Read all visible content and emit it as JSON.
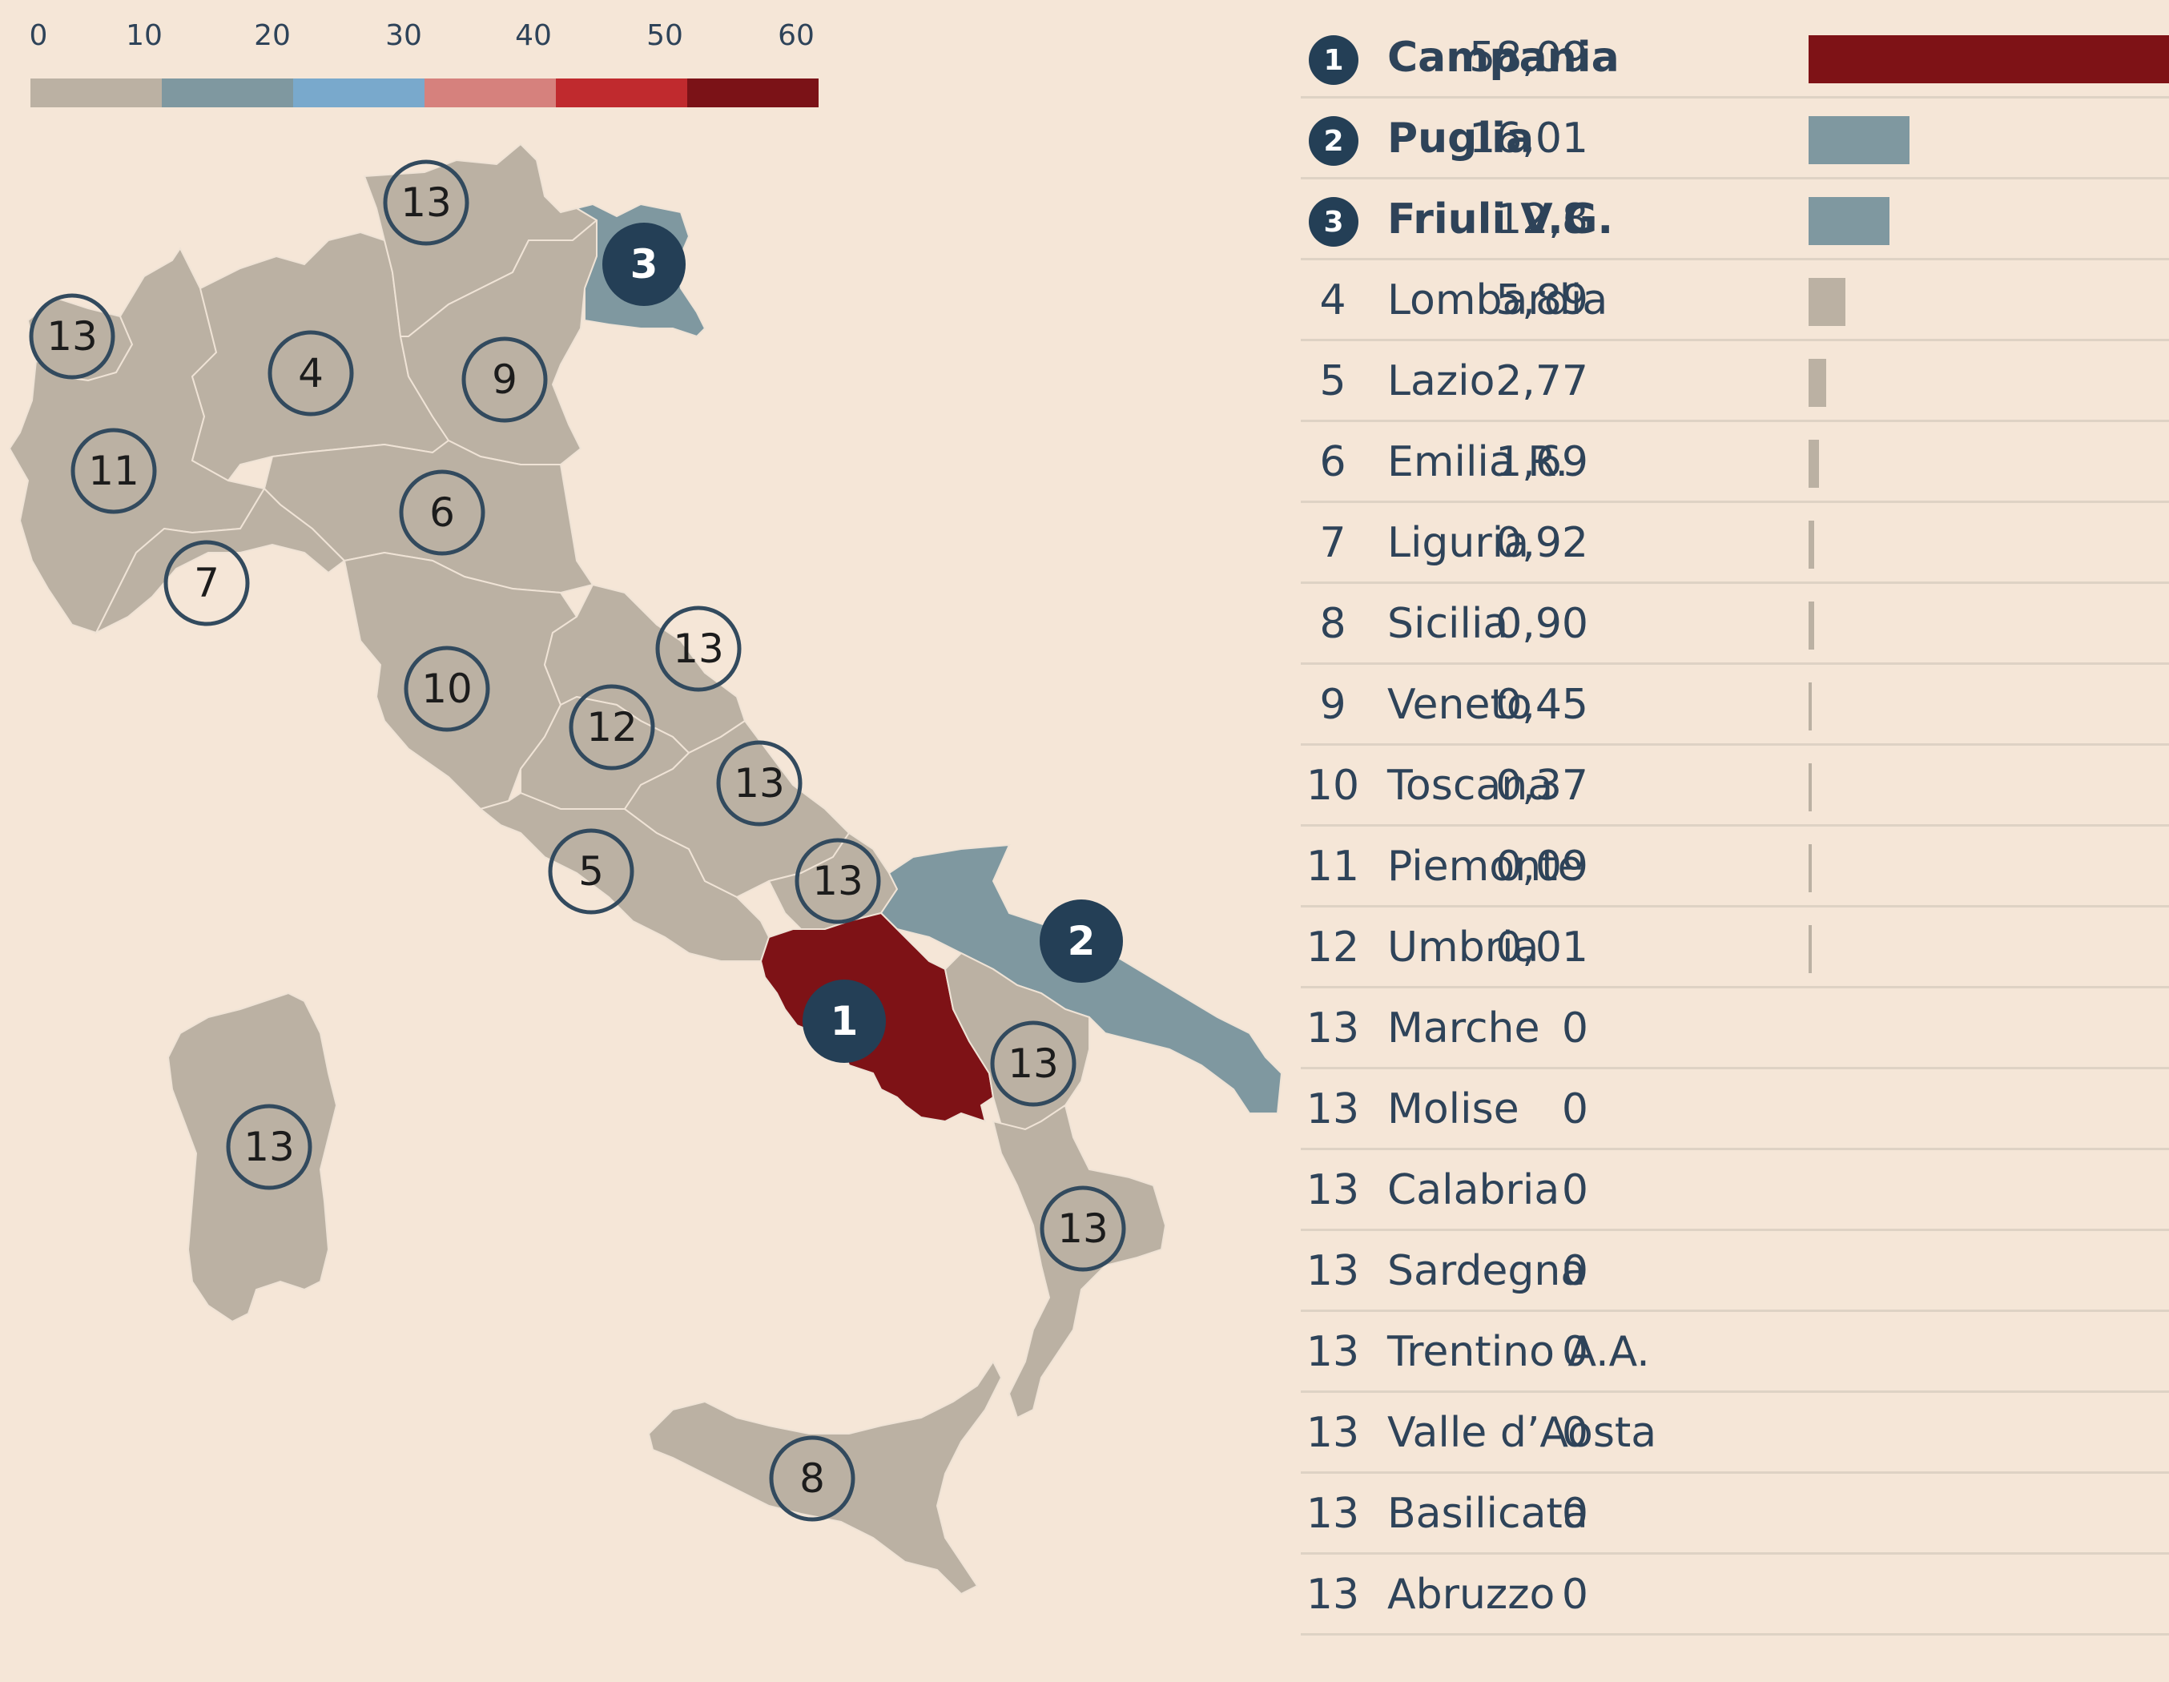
{
  "legend": {
    "ticks": [
      "0",
      "10",
      "20",
      "30",
      "40",
      "50",
      "60"
    ],
    "colors": [
      "#bbb1a3",
      "#7f98a0",
      "#79a9cc",
      "#d6817d",
      "#c02a2e",
      "#7b1217"
    ]
  },
  "colors": {
    "background": "#f5e6d7",
    "land": "#bbb1a3",
    "campania": "#7e1216",
    "puglia_friuli": "#7f98a0",
    "badge_dark": "#243f56",
    "text": "#2e4359"
  },
  "map_labels": [
    {
      "id": "trentino",
      "label": "13",
      "filled": false
    },
    {
      "id": "friuli",
      "label": "3",
      "filled": true
    },
    {
      "id": "valle",
      "label": "13",
      "filled": false
    },
    {
      "id": "lombardia",
      "label": "4",
      "filled": false
    },
    {
      "id": "veneto",
      "label": "9",
      "filled": false
    },
    {
      "id": "piemonte",
      "label": "11",
      "filled": false
    },
    {
      "id": "emilia",
      "label": "6",
      "filled": false
    },
    {
      "id": "liguria",
      "label": "7",
      "filled": false
    },
    {
      "id": "marche",
      "label": "13",
      "filled": false
    },
    {
      "id": "toscana",
      "label": "10",
      "filled": false
    },
    {
      "id": "umbria",
      "label": "12",
      "filled": false
    },
    {
      "id": "abruzzo",
      "label": "13",
      "filled": false
    },
    {
      "id": "lazio",
      "label": "5",
      "filled": false
    },
    {
      "id": "molise",
      "label": "13",
      "filled": false
    },
    {
      "id": "puglia",
      "label": "2",
      "filled": true
    },
    {
      "id": "campania",
      "label": "1",
      "filled": true
    },
    {
      "id": "basilicata",
      "label": "13",
      "filled": false
    },
    {
      "id": "sardegna",
      "label": "13",
      "filled": false
    },
    {
      "id": "calabria",
      "label": "13",
      "filled": false
    },
    {
      "id": "sicilia",
      "label": "8",
      "filled": false
    }
  ],
  "ranking": [
    {
      "rank": "1",
      "name": "Campania",
      "value": "58,09",
      "num": 58.09,
      "highlight": true,
      "color": "#7e1216"
    },
    {
      "rank": "2",
      "name": "Puglia",
      "value": "16,01",
      "num": 16.01,
      "highlight": true,
      "color": "#7f98a0"
    },
    {
      "rank": "3",
      "name": "Friuli V.G.",
      "value": "12,8",
      "num": 12.8,
      "highlight": true,
      "color": "#7f98a0"
    },
    {
      "rank": "4",
      "name": "Lombardia",
      "value": "5,89",
      "num": 5.89,
      "highlight": false,
      "color": "#bbb1a3"
    },
    {
      "rank": "5",
      "name": "Lazio",
      "value": "2,77",
      "num": 2.77,
      "highlight": false,
      "color": "#bbb1a3"
    },
    {
      "rank": "6",
      "name": "Emilia R.",
      "value": "1,69",
      "num": 1.69,
      "highlight": false,
      "color": "#bbb1a3"
    },
    {
      "rank": "7",
      "name": "Liguria",
      "value": "0,92",
      "num": 0.92,
      "highlight": false,
      "color": "#bbb1a3"
    },
    {
      "rank": "8",
      "name": "Sicilia",
      "value": "0,90",
      "num": 0.9,
      "highlight": false,
      "color": "#bbb1a3"
    },
    {
      "rank": "9",
      "name": "Veneto",
      "value": "0,45",
      "num": 0.45,
      "highlight": false,
      "color": "#bbb1a3"
    },
    {
      "rank": "10",
      "name": "Toscana",
      "value": "0,37",
      "num": 0.37,
      "highlight": false,
      "color": "#bbb1a3"
    },
    {
      "rank": "11",
      "name": "Piemonte",
      "value": "0,09",
      "num": 0.09,
      "highlight": false,
      "color": "#bbb1a3"
    },
    {
      "rank": "12",
      "name": "Umbria",
      "value": "0,01",
      "num": 0.01,
      "highlight": false,
      "color": "#bbb1a3"
    },
    {
      "rank": "13",
      "name": "Marche",
      "value": "0",
      "num": 0,
      "highlight": false,
      "color": "#bbb1a3"
    },
    {
      "rank": "13",
      "name": "Molise",
      "value": "0",
      "num": 0,
      "highlight": false,
      "color": "#bbb1a3"
    },
    {
      "rank": "13",
      "name": "Calabria",
      "value": "0",
      "num": 0,
      "highlight": false,
      "color": "#bbb1a3"
    },
    {
      "rank": "13",
      "name": "Sardegna",
      "value": "0",
      "num": 0,
      "highlight": false,
      "color": "#bbb1a3"
    },
    {
      "rank": "13",
      "name": "Trentino A.A.",
      "value": "0",
      "num": 0,
      "highlight": false,
      "color": "#bbb1a3"
    },
    {
      "rank": "13",
      "name": "Valle d’Aosta",
      "value": "0",
      "num": 0,
      "highlight": false,
      "color": "#bbb1a3"
    },
    {
      "rank": "13",
      "name": "Basilicata",
      "value": "0",
      "num": 0,
      "highlight": false,
      "color": "#bbb1a3"
    },
    {
      "rank": "13",
      "name": "Abruzzo",
      "value": "0",
      "num": 0,
      "highlight": false,
      "color": "#bbb1a3"
    }
  ],
  "scale_max": 60
}
